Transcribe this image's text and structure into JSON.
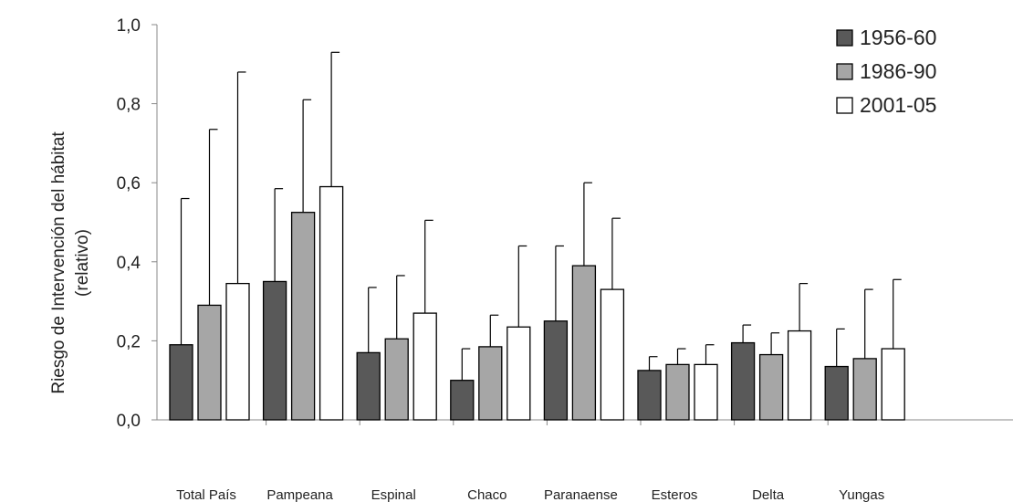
{
  "chart_data": {
    "type": "bar",
    "title": "",
    "xlabel": "",
    "ylabel": [
      "Riesgo de Intervención del hábitat",
      "(relativo)"
    ],
    "ylim": [
      0,
      1.0
    ],
    "yticks": [
      "0,0",
      "0,2",
      "0,4",
      "0,6",
      "0,8",
      "1,0"
    ],
    "ytick_values": [
      0,
      0.2,
      0.4,
      0.6,
      0.8,
      1.0
    ],
    "categories": [
      "Total País",
      "Pampeana",
      "Espinal",
      "Chaco",
      "Paranaense",
      "Esteros",
      "Delta",
      "Yungas"
    ],
    "series": [
      {
        "name": "1956-60",
        "color": "#595959",
        "values": [
          0.19,
          0.35,
          0.17,
          0.1,
          0.25,
          0.125,
          0.195,
          0.135
        ],
        "errors": [
          0.37,
          0.235,
          0.165,
          0.08,
          0.19,
          0.035,
          0.045,
          0.095
        ]
      },
      {
        "name": "1986-90",
        "color": "#a6a6a6",
        "values": [
          0.29,
          0.525,
          0.205,
          0.185,
          0.39,
          0.14,
          0.165,
          0.155
        ],
        "errors": [
          0.445,
          0.285,
          0.16,
          0.08,
          0.21,
          0.04,
          0.055,
          0.175
        ]
      },
      {
        "name": "2001-05",
        "color": "#ffffff",
        "values": [
          0.345,
          0.59,
          0.27,
          0.235,
          0.33,
          0.14,
          0.225,
          0.18
        ],
        "errors": [
          0.535,
          0.34,
          0.235,
          0.205,
          0.18,
          0.05,
          0.12,
          0.175
        ]
      }
    ],
    "legend_position": "top-right",
    "grid": false
  }
}
